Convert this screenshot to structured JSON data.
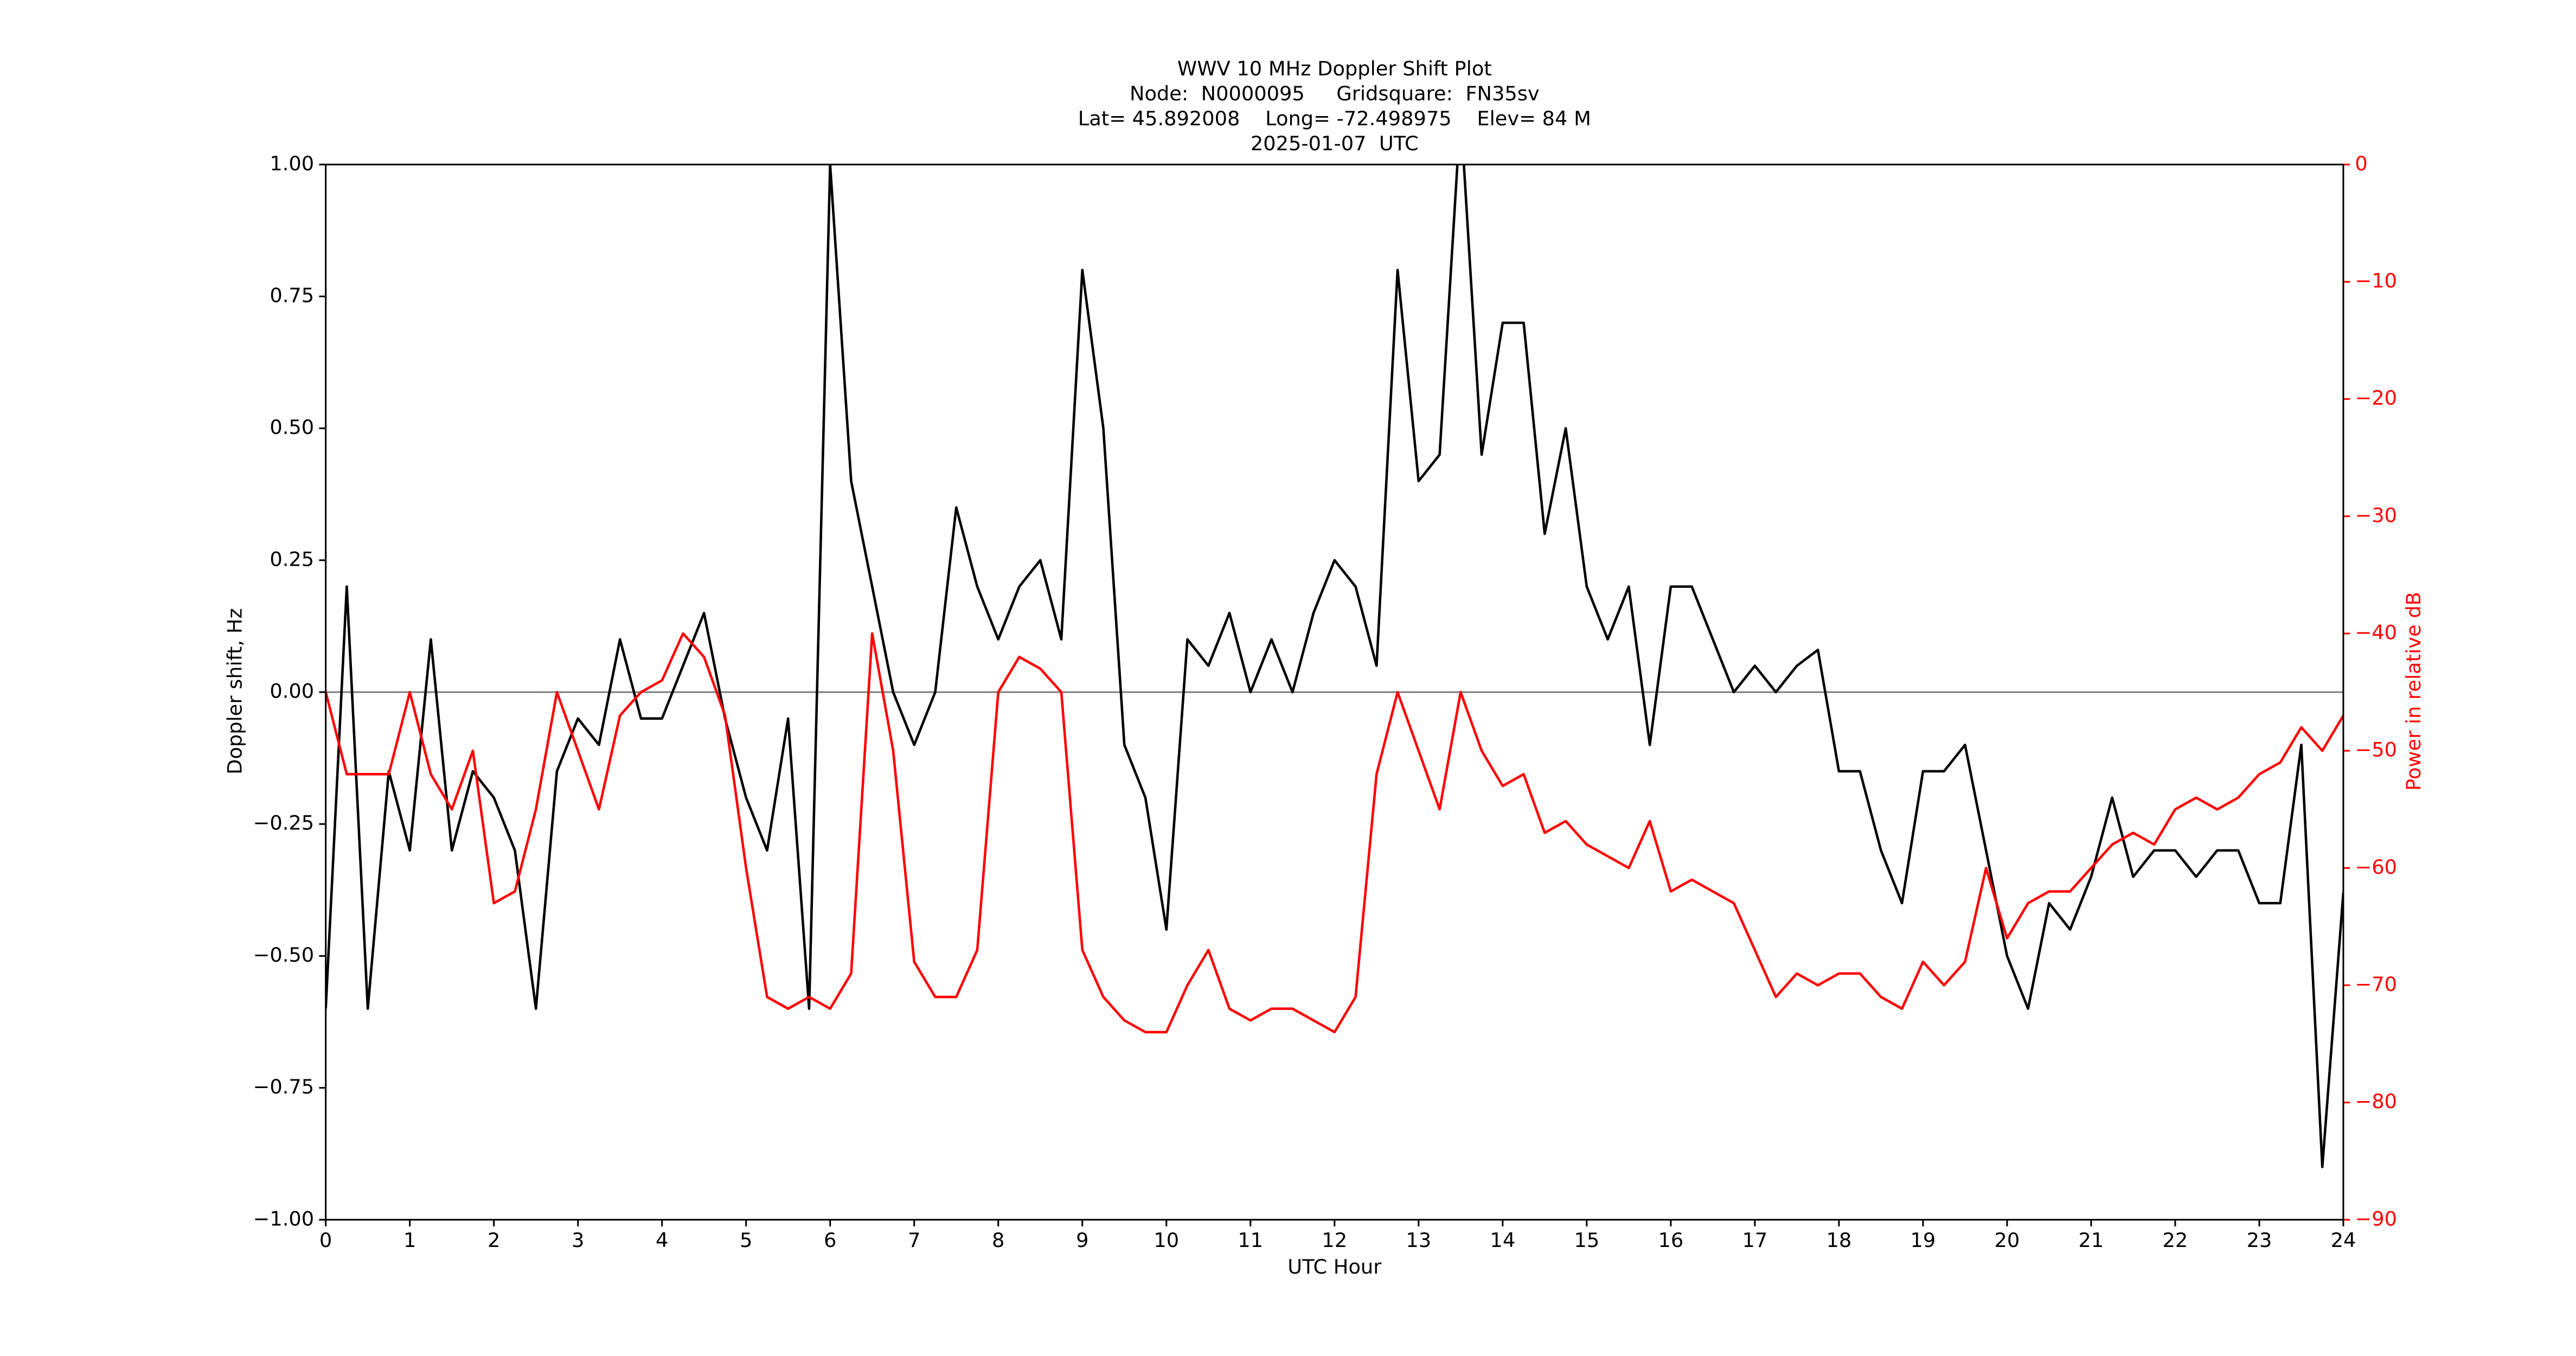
{
  "chart_data": {
    "type": "line",
    "title": [
      "WWV 10 MHz Doppler Shift Plot",
      "Node:  N0000095     Gridsquare:  FN35sv",
      "Lat= 45.892008    Long= -72.498975    Elev= 84 M",
      "2025-01-07  UTC"
    ],
    "xlabel": "UTC Hour",
    "ylabel": "Doppler shift, Hz",
    "y2label": "Power in relative dB",
    "x": [
      0,
      0.25,
      0.5,
      0.75,
      1,
      1.25,
      1.5,
      1.75,
      2,
      2.25,
      2.5,
      2.75,
      3,
      3.25,
      3.5,
      3.75,
      4,
      4.25,
      4.5,
      4.75,
      5,
      5.25,
      5.5,
      5.75,
      6,
      6.25,
      6.5,
      6.75,
      7,
      7.25,
      7.5,
      7.75,
      8,
      8.25,
      8.5,
      8.75,
      9,
      9.25,
      9.5,
      9.75,
      10,
      10.25,
      10.5,
      10.75,
      11,
      11.25,
      11.5,
      11.75,
      12,
      12.25,
      12.5,
      12.75,
      13,
      13.25,
      13.5,
      13.75,
      14,
      14.25,
      14.5,
      14.75,
      15,
      15.25,
      15.5,
      15.75,
      16,
      16.25,
      16.5,
      16.75,
      17,
      17.25,
      17.5,
      17.75,
      18,
      18.25,
      18.5,
      18.75,
      19,
      19.25,
      19.5,
      19.75,
      20,
      20.25,
      20.5,
      20.75,
      21,
      21.25,
      21.5,
      21.75,
      22,
      22.25,
      22.5,
      22.75,
      23,
      23.25,
      23.5,
      23.75,
      24
    ],
    "series": [
      {
        "name": "Doppler shift",
        "color": "#000000",
        "values": [
          -0.6,
          0.2,
          -0.6,
          -0.15,
          -0.3,
          0.1,
          -0.3,
          -0.15,
          -0.2,
          -0.3,
          -0.6,
          -0.15,
          -0.05,
          -0.1,
          0.1,
          -0.05,
          -0.05,
          0.05,
          0.15,
          -0.05,
          -0.2,
          -0.3,
          -0.05,
          -0.6,
          1.0,
          0.4,
          0.2,
          0.0,
          -0.1,
          0.0,
          0.35,
          0.2,
          0.1,
          0.2,
          0.25,
          0.1,
          0.8,
          0.5,
          -0.1,
          -0.2,
          -0.45,
          0.1,
          0.05,
          0.15,
          0.0,
          0.1,
          0.0,
          0.15,
          0.25,
          0.2,
          0.05,
          0.8,
          0.4,
          0.45,
          1.1,
          0.45,
          0.7,
          0.7,
          0.3,
          0.5,
          0.2,
          0.1,
          0.2,
          -0.1,
          0.2,
          0.2,
          0.1,
          0.0,
          0.05,
          0.0,
          0.05,
          0.08,
          -0.15,
          -0.15,
          -0.3,
          -0.4,
          -0.15,
          -0.15,
          -0.1,
          -0.3,
          -0.5,
          -0.6,
          -0.4,
          -0.45,
          -0.35,
          -0.2,
          -0.35,
          -0.3,
          -0.3,
          -0.35,
          -0.3,
          -0.3,
          -0.4,
          -0.4,
          -0.1,
          -0.9,
          -0.38
        ]
      },
      {
        "name": "Power",
        "color": "#ff0000",
        "axis": "y2",
        "values": [
          -45,
          -52,
          -52,
          -52,
          -45,
          -52,
          -55,
          -50,
          -63,
          -62,
          -55,
          -45,
          -50,
          -55,
          -47,
          -45,
          -44,
          -40,
          -42,
          -47,
          -60,
          -71,
          -72,
          -71,
          -72,
          -69,
          -40,
          -50,
          -68,
          -71,
          -71,
          -67,
          -45,
          -42,
          -43,
          -45,
          -67,
          -71,
          -73,
          -74,
          -74,
          -70,
          -67,
          -72,
          -73,
          -72,
          -72,
          -73,
          -74,
          -71,
          -52,
          -45,
          -50,
          -55,
          -45,
          -50,
          -53,
          -52,
          -57,
          -56,
          -58,
          -59,
          -60,
          -56,
          -62,
          -61,
          -62,
          -63,
          -67,
          -71,
          -69,
          -70,
          -69,
          -69,
          -71,
          -72,
          -68,
          -70,
          -68,
          -60,
          -66,
          -63,
          -62,
          -62,
          -60,
          -58,
          -57,
          -58,
          -55,
          -54,
          -55,
          -54,
          -52,
          -51,
          -48,
          -50,
          -47
        ]
      }
    ],
    "xlim": [
      0,
      24
    ],
    "xticks": [
      0,
      1,
      2,
      3,
      4,
      5,
      6,
      7,
      8,
      9,
      10,
      11,
      12,
      13,
      14,
      15,
      16,
      17,
      18,
      19,
      20,
      21,
      22,
      23,
      24
    ],
    "ylim": [
      -1,
      1
    ],
    "yticks": [
      {
        "value": -1,
        "label": "−1.00"
      },
      {
        "value": -0.75,
        "label": "−0.75"
      },
      {
        "value": -0.5,
        "label": "−0.50"
      },
      {
        "value": -0.25,
        "label": "−0.25"
      },
      {
        "value": 0,
        "label": "0.00"
      },
      {
        "value": 0.25,
        "label": "0.25"
      },
      {
        "value": 0.5,
        "label": "0.50"
      },
      {
        "value": 0.75,
        "label": "0.75"
      },
      {
        "value": 1,
        "label": "1.00"
      }
    ],
    "y2lim": [
      -90,
      0
    ],
    "y2ticks": [
      {
        "value": -90,
        "label": "−90"
      },
      {
        "value": -80,
        "label": "−80"
      },
      {
        "value": -70,
        "label": "−70"
      },
      {
        "value": -60,
        "label": "−60"
      },
      {
        "value": -50,
        "label": "−50"
      },
      {
        "value": -40,
        "label": "−40"
      },
      {
        "value": -30,
        "label": "−30"
      },
      {
        "value": -20,
        "label": "−20"
      },
      {
        "value": -10,
        "label": "−10"
      },
      0
    ],
    "y2color": "#ff0000",
    "zero_line": true
  }
}
